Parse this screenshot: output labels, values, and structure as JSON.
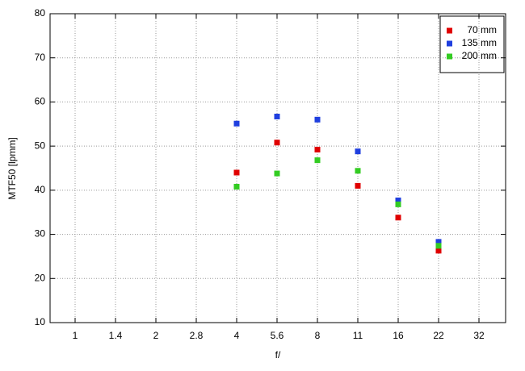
{
  "chart_data": {
    "type": "scatter",
    "x_label": "f/",
    "y_label": "MTF50 [lpmm]",
    "categories": [
      "1",
      "1.4",
      "2",
      "2.8",
      "4",
      "5.6",
      "8",
      "11",
      "16",
      "22",
      "32"
    ],
    "series": [
      {
        "name": "70 mm",
        "color": "#e00000",
        "values": [
          null,
          null,
          null,
          null,
          44.0,
          50.8,
          49.2,
          41.0,
          33.8,
          26.3,
          null
        ]
      },
      {
        "name": "135 mm",
        "color": "#1f3fdf",
        "values": [
          null,
          null,
          null,
          null,
          55.1,
          56.7,
          56.0,
          48.8,
          37.7,
          28.3,
          null
        ]
      },
      {
        "name": "200 mm",
        "color": "#33cc22",
        "values": [
          null,
          null,
          null,
          null,
          40.8,
          43.8,
          46.8,
          44.4,
          36.8,
          27.4,
          null
        ]
      }
    ],
    "ylim": [
      10,
      80
    ],
    "yticks": [
      10,
      20,
      30,
      40,
      50,
      60,
      70,
      80
    ],
    "grid": true,
    "legend": "top-right"
  }
}
